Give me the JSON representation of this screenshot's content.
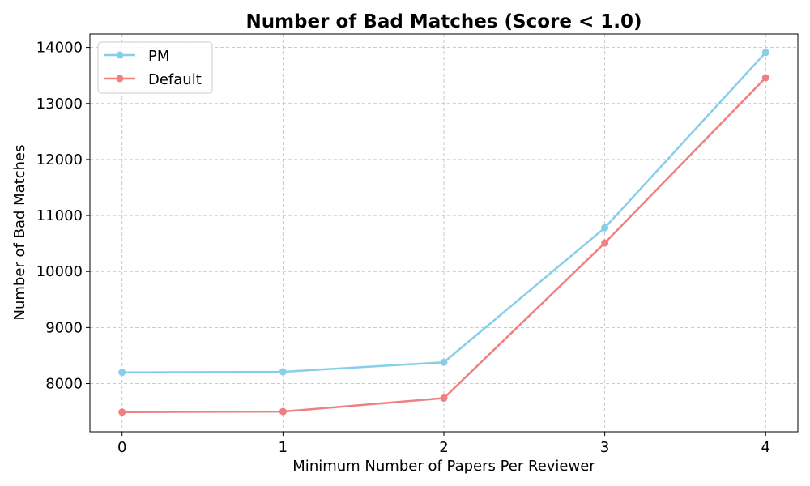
{
  "chart_data": {
    "type": "line",
    "title": "Number of Bad Matches (Score < 1.0)",
    "xlabel": "Minimum Number of Papers Per Reviewer",
    "ylabel": "Number of Bad Matches",
    "x": [
      0,
      1,
      2,
      3,
      4
    ],
    "x_ticks": [
      "0",
      "1",
      "2",
      "3",
      "4"
    ],
    "y_ticks": [
      "8000",
      "9000",
      "10000",
      "11000",
      "12000",
      "13000",
      "14000"
    ],
    "xlim": [
      -0.2,
      4.2
    ],
    "ylim": [
      7140,
      14240
    ],
    "grid": true,
    "legend_position": "top-left",
    "series": [
      {
        "name": "PM",
        "color": "#87CEEB",
        "values": [
          8200,
          8210,
          8380,
          10780,
          13910
        ]
      },
      {
        "name": "Default",
        "color": "#F08080",
        "values": [
          7490,
          7500,
          7740,
          10510,
          13460
        ]
      }
    ]
  }
}
